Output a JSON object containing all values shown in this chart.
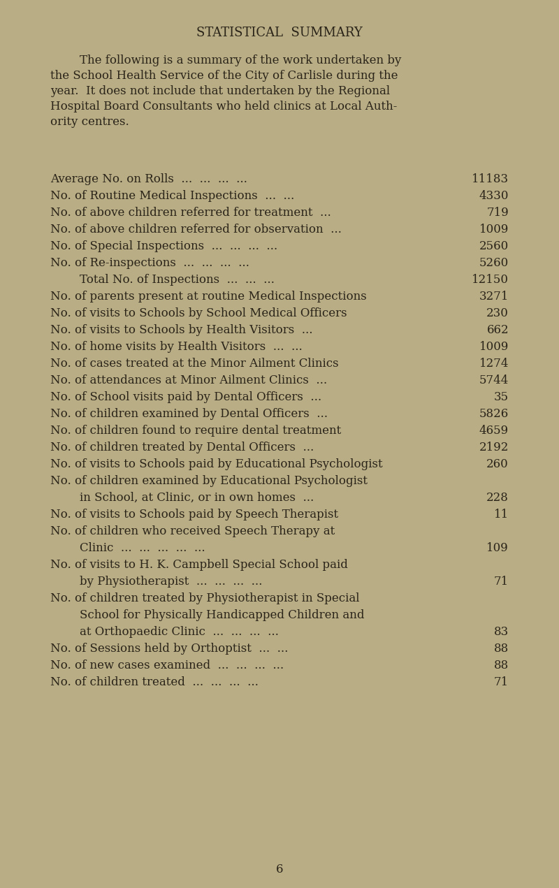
{
  "title": "STATISTICAL  SUMMARY",
  "bg_color": "#b8ad85",
  "text_color": "#2a2318",
  "intro_lines": [
    "        The following is a summary of the work undertaken by",
    "the School Health Service of the City of Carlisle during the",
    "year.  It does not include that undertaken by the Regional",
    "Hospital Board Consultants who held clinics at Local Auth-",
    "ority centres."
  ],
  "rows": [
    {
      "label": "Average No. on Rolls  ...  ...  ...  ...  ",
      "value": "11183",
      "extra_lines": []
    },
    {
      "label": "No. of Routine Medical Inspections  ...  ...  ",
      "value": "4330",
      "extra_lines": []
    },
    {
      "label": "No. of above children referred for treatment  ...  ",
      "value": "719",
      "extra_lines": []
    },
    {
      "label": "No. of above children referred for observation  ...  ",
      "value": "1009",
      "extra_lines": []
    },
    {
      "label": "No. of Special Inspections  ...  ...  ...  ...  ",
      "value": "2560",
      "extra_lines": []
    },
    {
      "label": "No. of Re-inspections  ...  ...  ...  ...  ",
      "value": "5260",
      "extra_lines": []
    },
    {
      "label": "        Total No. of Inspections  ...  ...  ...  ",
      "value": "12150",
      "extra_lines": []
    },
    {
      "label": "No. of parents present at routine Medical Inspections  ",
      "value": "3271",
      "extra_lines": []
    },
    {
      "label": "No. of visits to Schools by School Medical Officers  ",
      "value": "230",
      "extra_lines": []
    },
    {
      "label": "No. of visits to Schools by Health Visitors  ...  ",
      "value": "662",
      "extra_lines": []
    },
    {
      "label": "No. of home visits by Health Visitors  ...  ...  ",
      "value": "1009",
      "extra_lines": []
    },
    {
      "label": "No. of cases treated at the Minor Ailment Clinics  ",
      "value": "1274",
      "extra_lines": []
    },
    {
      "label": "No. of attendances at Minor Ailment Clinics  ...  ",
      "value": "5744",
      "extra_lines": []
    },
    {
      "label": "No. of School visits paid by Dental Officers  ...  ",
      "value": "35",
      "extra_lines": []
    },
    {
      "label": "No. of children examined by Dental Officers  ...  ",
      "value": "5826",
      "extra_lines": []
    },
    {
      "label": "No. of children found to require dental treatment  ",
      "value": "4659",
      "extra_lines": []
    },
    {
      "label": "No. of children treated by Dental Officers  ...  ",
      "value": "2192",
      "extra_lines": []
    },
    {
      "label": "No. of visits to Schools paid by Educational Psychologist  ",
      "value": "260",
      "extra_lines": []
    },
    {
      "label": "No. of children examined by Educational Psychologist",
      "value": "228",
      "extra_lines": [
        "        in School, at Clinic, or in own homes  ...  "
      ]
    },
    {
      "label": "No. of visits to Schools paid by Speech Therapist  ",
      "value": "11",
      "extra_lines": []
    },
    {
      "label": "No. of children who received Speech Therapy at",
      "value": "109",
      "extra_lines": [
        "        Clinic  ...  ...  ...  ...  ...  "
      ]
    },
    {
      "label": "No. of visits to H. K. Campbell Special School paid",
      "value": "71",
      "extra_lines": [
        "        by Physiotherapist  ...  ...  ...  ...  "
      ]
    },
    {
      "label": "No. of children treated by Physiotherapist in Special",
      "value": "83",
      "extra_lines": [
        "        School for Physically Handicapped Children and",
        "        at Orthopaedic Clinic  ...  ...  ...  ...  "
      ]
    },
    {
      "label": "No. of Sessions held by Orthoptist  ...  ...  ",
      "value": "88",
      "extra_lines": []
    },
    {
      "label": "No. of new cases examined  ...  ...  ...  ...  ",
      "value": "88",
      "extra_lines": []
    },
    {
      "label": "No. of children treated  ...  ...  ...  ...  ",
      "value": "71",
      "extra_lines": []
    }
  ],
  "footer": "6",
  "title_fontsize": 13,
  "body_fontsize": 12,
  "intro_fontsize": 12
}
